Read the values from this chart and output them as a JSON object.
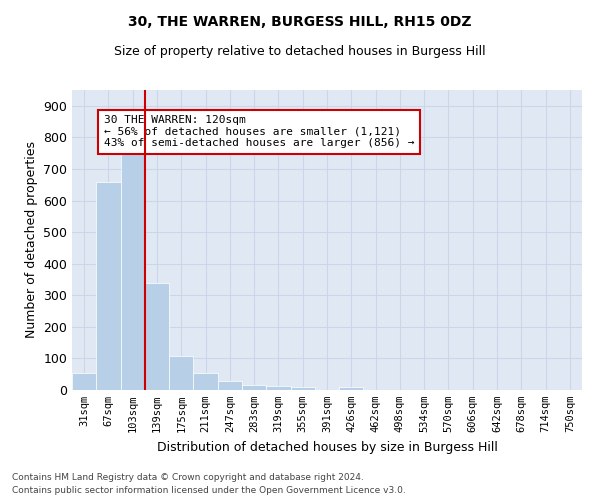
{
  "title1": "30, THE WARREN, BURGESS HILL, RH15 0DZ",
  "title2": "Size of property relative to detached houses in Burgess Hill",
  "xlabel": "Distribution of detached houses by size in Burgess Hill",
  "ylabel": "Number of detached properties",
  "bin_labels": [
    "31sqm",
    "67sqm",
    "103sqm",
    "139sqm",
    "175sqm",
    "211sqm",
    "247sqm",
    "283sqm",
    "319sqm",
    "355sqm",
    "391sqm",
    "426sqm",
    "462sqm",
    "498sqm",
    "534sqm",
    "570sqm",
    "606sqm",
    "642sqm",
    "678sqm",
    "714sqm",
    "750sqm"
  ],
  "bar_values": [
    55,
    660,
    750,
    340,
    108,
    55,
    27,
    15,
    13,
    8,
    0,
    10,
    0,
    0,
    0,
    0,
    0,
    0,
    0,
    0,
    0
  ],
  "bar_color": "#b8cfe8",
  "vline_color": "#cc0000",
  "vline_x_index": 2,
  "annotation_text": "30 THE WARREN: 120sqm\n← 56% of detached houses are smaller (1,121)\n43% of semi-detached houses are larger (856) →",
  "annotation_box_color": "white",
  "annotation_box_edge_color": "#cc0000",
  "grid_color": "#ccd6e8",
  "background_color": "#e0e8f4",
  "ylim": [
    0,
    950
  ],
  "yticks": [
    0,
    100,
    200,
    300,
    400,
    500,
    600,
    700,
    800,
    900
  ],
  "footer1": "Contains HM Land Registry data © Crown copyright and database right 2024.",
  "footer2": "Contains public sector information licensed under the Open Government Licence v3.0."
}
